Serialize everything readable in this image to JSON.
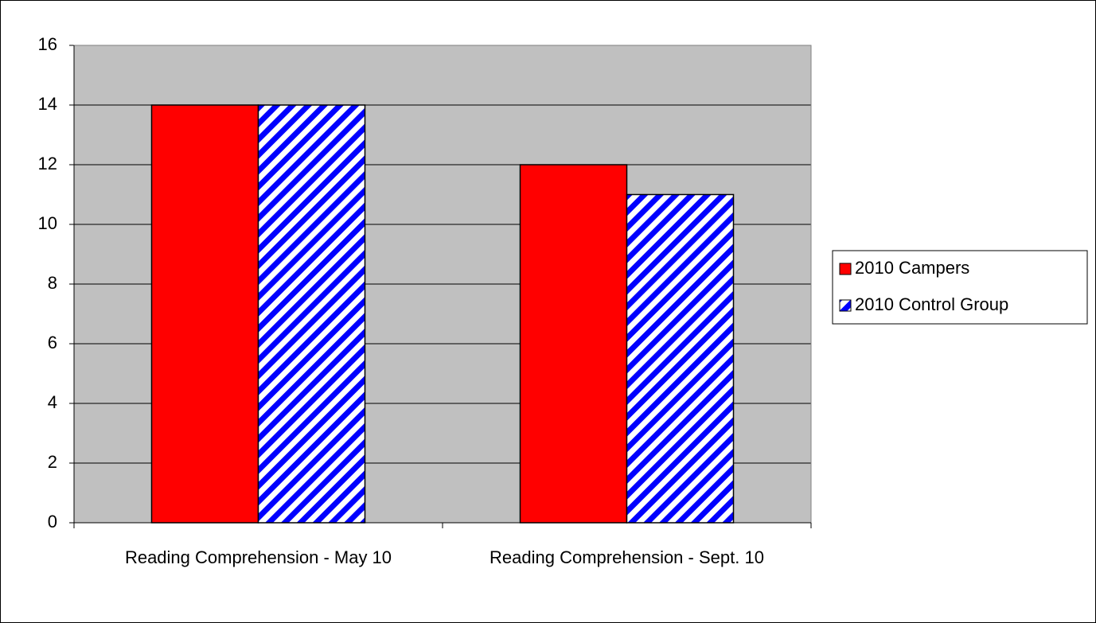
{
  "chart_data": {
    "type": "bar",
    "categories": [
      "Reading Comprehension - May 10",
      "Reading Comprehension - Sept. 10"
    ],
    "series": [
      {
        "name": "2010 Campers",
        "color": "#ff0000",
        "fill": "solid",
        "values": [
          14,
          12
        ]
      },
      {
        "name": "2010 Control Group",
        "color": "#0000ff",
        "fill": "diagonal-stripes",
        "values": [
          14,
          11
        ]
      }
    ],
    "ylim": [
      0,
      16
    ],
    "yticks": [
      0,
      2,
      4,
      6,
      8,
      10,
      12,
      14,
      16
    ],
    "grid": true,
    "legend": "right"
  }
}
